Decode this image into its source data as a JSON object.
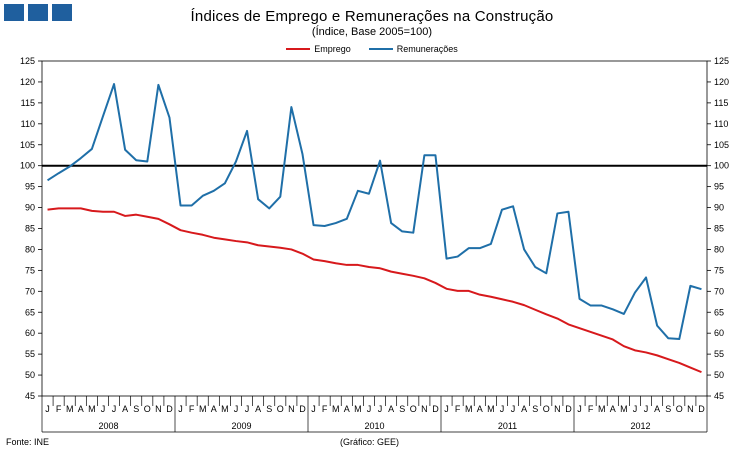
{
  "header": {
    "logo_color": "#1f5f9e"
  },
  "chart_data": {
    "type": "line",
    "title": "Índices de Emprego e Remunerações na Construção",
    "subtitle": "(Índice, Base 2005=100)",
    "ylim": [
      45,
      125
    ],
    "ytick_step": 5,
    "reference_line": 100,
    "month_labels": [
      "J",
      "F",
      "M",
      "A",
      "M",
      "J",
      "J",
      "A",
      "S",
      "O",
      "N",
      "D"
    ],
    "years": [
      "2008",
      "2009",
      "2010",
      "2011",
      "2012"
    ],
    "series": [
      {
        "name": "Emprego",
        "color": "#d7191c",
        "values": [
          89.5,
          89.8,
          89.8,
          89.8,
          89.2,
          89.0,
          89.0,
          88.0,
          88.3,
          87.8,
          87.3,
          86.0,
          84.6,
          84.0,
          83.5,
          82.8,
          82.4,
          82.0,
          81.7,
          81.0,
          80.7,
          80.4,
          80.0,
          79.0,
          77.6,
          77.2,
          76.7,
          76.3,
          76.3,
          75.8,
          75.5,
          74.7,
          74.2,
          73.7,
          73.1,
          72.0,
          70.6,
          70.1,
          70.1,
          69.2,
          68.7,
          68.1,
          67.5,
          66.7,
          65.6,
          64.5,
          63.5,
          62.1,
          61.2,
          60.3,
          59.4,
          58.5,
          56.9,
          55.9,
          55.4,
          54.7,
          53.8,
          52.9,
          51.8,
          50.7
        ]
      },
      {
        "name": "Remunerações",
        "color": "#1f6fa8",
        "values": [
          96.5,
          98.2,
          99.8,
          101.8,
          104.0,
          111.8,
          119.5,
          103.8,
          101.3,
          101.0,
          119.3,
          111.5,
          90.5,
          90.5,
          92.8,
          94.0,
          95.8,
          101.0,
          108.3,
          92.0,
          89.8,
          92.6,
          114.0,
          102.8,
          85.8,
          85.6,
          86.3,
          87.3,
          94.0,
          93.3,
          101.2,
          86.3,
          84.3,
          84.0,
          102.5,
          102.5,
          77.8,
          78.3,
          80.3,
          80.3,
          81.3,
          89.5,
          90.3,
          80.0,
          75.8,
          74.3,
          88.6,
          89.0,
          68.2,
          66.6,
          66.6,
          65.7,
          64.6,
          69.7,
          73.3,
          61.8,
          58.8,
          58.6,
          71.3,
          70.5
        ]
      }
    ]
  },
  "footer": {
    "source": "Fonte: INE",
    "credit": "(Gráfico: GEE)"
  }
}
